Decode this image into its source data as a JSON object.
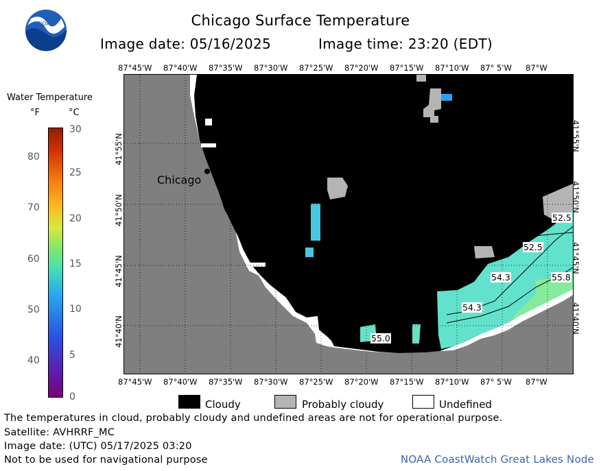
{
  "title": "Chicago Surface Temperature",
  "image_date": "Image date: 05/16/2025",
  "image_time": "Image time: 23:20 (EDT)",
  "logo": {
    "text": "NOAA",
    "icon": "noaa-logo-icon"
  },
  "map": {
    "lon_labels": [
      "87°45'W",
      "87°40'W",
      "87°35'W",
      "87°30'W",
      "87°25'W",
      "87°20'W",
      "87°15'W",
      "87°10'W",
      "87° 5'W",
      "87°W"
    ],
    "lat_labels": [
      "41°55'N",
      "41°50'N",
      "41°45'N",
      "41°40'N"
    ],
    "city_label": "Chicago",
    "temperature_labels": [
      "52.5",
      "52.5",
      "54.3",
      "55.8",
      "54.3",
      "55.0"
    ]
  },
  "colorbar": {
    "title": "Water Temperature",
    "unit_f": "°F",
    "unit_c": "°C",
    "ticks_f": [
      "80",
      "70",
      "60",
      "50",
      "40"
    ],
    "ticks_c": [
      "30",
      "25",
      "20",
      "15",
      "10",
      "5",
      "0"
    ]
  },
  "legend": [
    {
      "label": "Cloudy",
      "color": "#000000"
    },
    {
      "label": "Probably cloudy",
      "color": "#b4b4b4"
    },
    {
      "label": "Undefined",
      "color": "#ffffff"
    }
  ],
  "notes": {
    "disclaimer": "The temperatures in cloud, probably cloudy and undefined areas are not for operational purpose.",
    "satellite": "Satellite: AVHRRF_MC",
    "utc_date": "Image date: (UTC) 05/17/2025  03:20",
    "navigation": "Not to be used for navigational purpose"
  },
  "credit": "NOAA CoastWatch Great Lakes Node"
}
